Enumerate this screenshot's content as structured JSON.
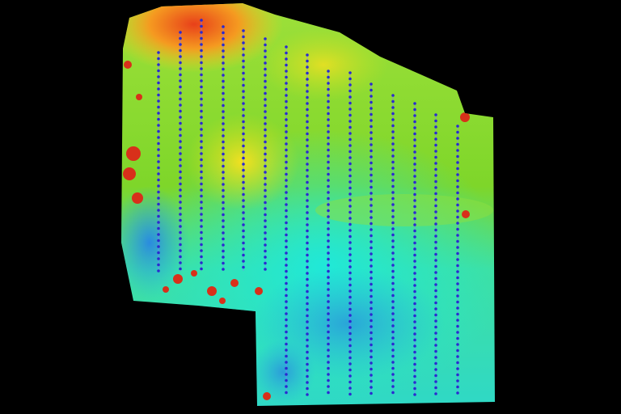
{
  "map": {
    "background_color": "#000000",
    "elevation_colors": {
      "high": "#e8401a",
      "upper": "#f5d020",
      "mid": "#7ed62a",
      "lower": "#2ee0b0",
      "low": "#2a9ae0"
    },
    "flight_point_color": "#2a2ad0"
  }
}
